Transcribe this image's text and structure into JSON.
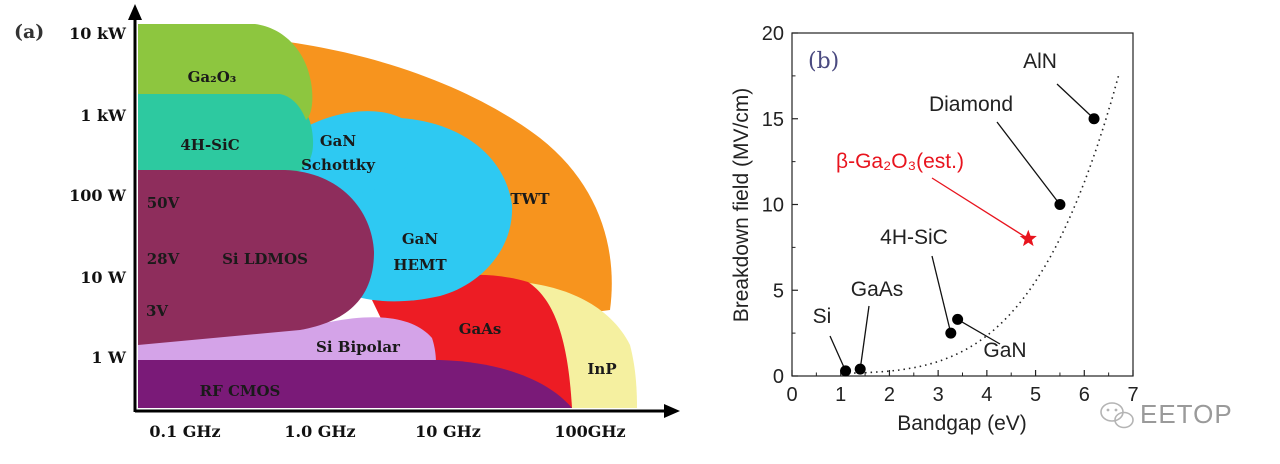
{
  "chart_data": [
    {
      "type": "region-map",
      "panel_label": "(a)",
      "y_ticks": [
        "10 kW",
        "1 kW",
        "100 W",
        "10 W",
        "1 W"
      ],
      "x_ticks": [
        "0.1 GHz",
        "1.0 GHz",
        "10 GHz",
        "100GHz"
      ],
      "regions": [
        {
          "label": "TWT",
          "color": "#f7941e"
        },
        {
          "label": "InP",
          "color": "#f5f0a0"
        },
        {
          "label": "GaAs",
          "color": "#ed1c24"
        },
        {
          "label": "Si Bipolar",
          "color": "#d4a3e8"
        },
        {
          "label": "RF CMOS",
          "color": "#7a1a78"
        },
        {
          "label_lines": [
            "GaN",
            "HEMT"
          ],
          "color": "#2ec9f2"
        },
        {
          "label_lines": [
            "GaN",
            "Schottky"
          ],
          "color": "#2ec9f2"
        },
        {
          "label": "4H-SiC",
          "color": "#2dc9a0"
        },
        {
          "label": "Ga₂O₃",
          "color": "#8dc63f"
        },
        {
          "label": "Si LDMOS",
          "color": "#8e2d5c",
          "voltages": [
            "50V",
            "28V",
            "3V"
          ]
        }
      ]
    },
    {
      "type": "scatter",
      "panel_label": "(b)",
      "xlabel": "Bandgap (eV)",
      "ylabel": "Breakdown field (MV/cm)",
      "xlim": [
        0,
        7
      ],
      "ylim": [
        0,
        20
      ],
      "x_ticks": [
        0,
        1,
        2,
        3,
        4,
        5,
        6,
        7
      ],
      "y_ticks": [
        0,
        5,
        10,
        15,
        20
      ],
      "trend": "dotted curve",
      "points": [
        {
          "label": "Si",
          "x": 1.1,
          "y": 0.3,
          "color": "#000000",
          "marker": "circle"
        },
        {
          "label": "GaAs",
          "x": 1.4,
          "y": 0.4,
          "color": "#000000",
          "marker": "circle"
        },
        {
          "label": "4H-SiC",
          "x": 3.26,
          "y": 2.5,
          "color": "#000000",
          "marker": "circle"
        },
        {
          "label": "GaN",
          "x": 3.4,
          "y": 3.3,
          "color": "#000000",
          "marker": "circle"
        },
        {
          "label": "β-Ga₂O₃(est.)",
          "x": 4.85,
          "y": 8.0,
          "color": "#e8141e",
          "marker": "star"
        },
        {
          "label": "Diamond",
          "x": 5.5,
          "y": 10.0,
          "color": "#000000",
          "marker": "circle"
        },
        {
          "label": "AlN",
          "x": 6.2,
          "y": 15.0,
          "color": "#000000",
          "marker": "circle"
        }
      ]
    }
  ],
  "watermark": {
    "text": "EETOP",
    "icon": "wechat-icon"
  }
}
